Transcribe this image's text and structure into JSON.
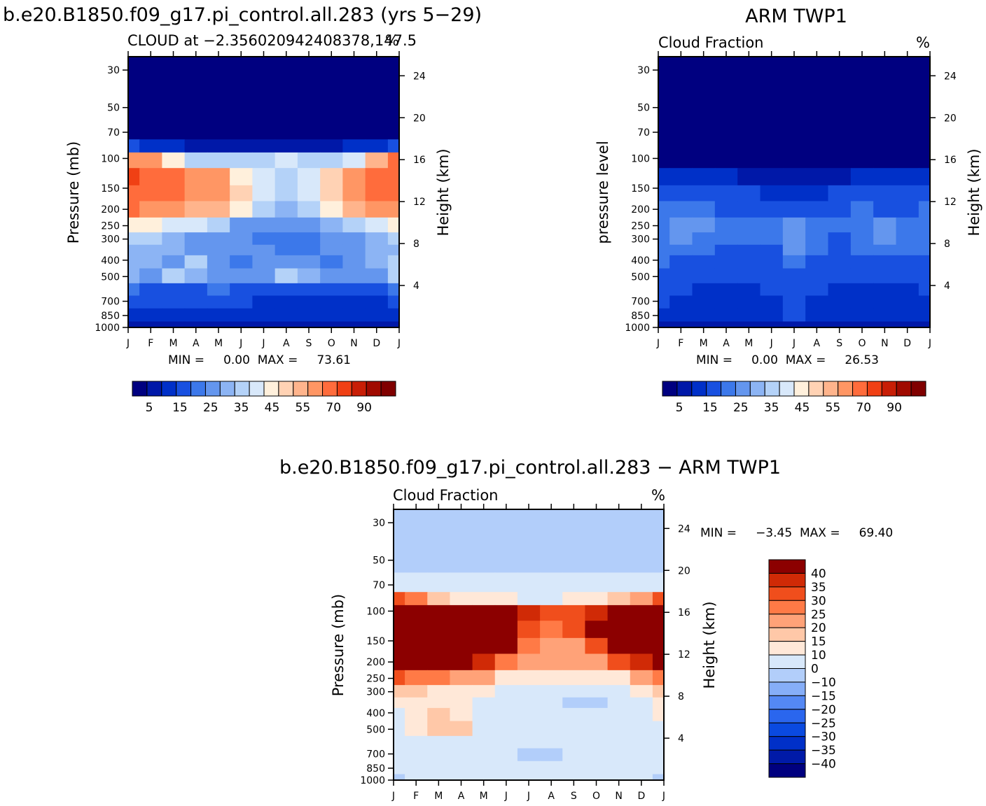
{
  "titles": {
    "model": "b.e20.B1850.f09_g17.pi_control.all.283 (yrs 5−29)",
    "obs": "ARM  TWP1",
    "diff": "b.e20.B1850.f09_g17.pi_control.all.283 − ARM  TWP1"
  },
  "chart_data": [
    {
      "type": "heatmap",
      "panel": "model",
      "subtitle_left": "CLOUD at −2.356020942408378,147.5",
      "subtitle_right": "%",
      "ylabel": "Pressure  (mb)",
      "ylabel_right": "Height  (km)",
      "x": [
        "J",
        "F",
        "M",
        "A",
        "M",
        "J",
        "J",
        "A",
        "S",
        "O",
        "N",
        "D",
        "J"
      ],
      "pressure_ticks": [
        30,
        50,
        70,
        100,
        150,
        200,
        250,
        300,
        400,
        500,
        700,
        850,
        1000
      ],
      "height_ticks": [
        24,
        20,
        16,
        12,
        8,
        4
      ],
      "ylim": [
        1000,
        25
      ],
      "stats_text": "MIN =     0.00  MAX =     73.61",
      "min": 0.0,
      "max": 73.61,
      "colorbar": {
        "orientation": "horizontal",
        "labels": [
          "5",
          "15",
          "25",
          "35",
          "45",
          "55",
          "70",
          "90"
        ]
      },
      "approx_field": {
        "pressure": [
          25,
          50,
          70,
          85,
          100,
          130,
          160,
          200,
          250,
          300,
          350,
          400,
          500,
          600,
          700,
          850,
          1000
        ],
        "months": [
          "J",
          "F",
          "M",
          "A",
          "M",
          "J",
          "J",
          "A",
          "S",
          "O",
          "N",
          "D",
          "J"
        ],
        "values": [
          [
            0,
            0,
            0,
            0,
            0,
            0,
            0,
            0,
            0,
            0,
            0,
            0,
            0
          ],
          [
            0,
            0,
            0,
            0,
            0,
            0,
            0,
            0,
            0,
            0,
            0,
            0,
            0
          ],
          [
            0,
            1,
            1,
            1,
            1,
            0,
            0,
            0,
            0,
            1,
            1,
            1,
            2
          ],
          [
            10,
            8,
            5,
            4,
            4,
            4,
            3,
            3,
            4,
            4,
            5,
            7,
            10
          ],
          [
            58,
            55,
            40,
            33,
            32,
            30,
            34,
            38,
            34,
            30,
            36,
            50,
            62
          ],
          [
            70,
            66,
            62,
            58,
            55,
            42,
            35,
            32,
            35,
            46,
            55,
            62,
            68
          ],
          [
            66,
            62,
            60,
            58,
            58,
            45,
            36,
            30,
            36,
            46,
            55,
            60,
            64
          ],
          [
            60,
            58,
            56,
            54,
            52,
            40,
            30,
            26,
            30,
            40,
            50,
            55,
            58
          ],
          [
            44,
            40,
            38,
            35,
            30,
            24,
            22,
            22,
            22,
            26,
            32,
            38,
            44
          ],
          [
            30,
            30,
            28,
            24,
            24,
            20,
            18,
            16,
            18,
            20,
            22,
            26,
            30
          ],
          [
            26,
            28,
            25,
            22,
            22,
            20,
            20,
            18,
            18,
            20,
            24,
            26,
            28
          ],
          [
            28,
            28,
            24,
            30,
            24,
            18,
            22,
            24,
            22,
            18,
            24,
            28,
            30
          ],
          [
            26,
            24,
            32,
            26,
            24,
            20,
            24,
            30,
            26,
            22,
            24,
            24,
            30
          ],
          [
            15,
            14,
            14,
            14,
            15,
            12,
            14,
            13,
            12,
            12,
            14,
            14,
            15
          ],
          [
            10,
            10,
            10,
            10,
            10,
            10,
            7,
            9,
            9,
            6,
            6,
            8,
            10
          ],
          [
            9,
            9,
            9,
            9,
            9,
            9,
            9,
            9,
            7,
            6,
            6,
            8,
            9
          ],
          [
            4,
            4,
            4,
            4,
            4,
            4,
            4,
            4,
            4,
            4,
            4,
            4,
            4
          ]
        ]
      }
    },
    {
      "type": "heatmap",
      "panel": "obs",
      "subtitle_left": "Cloud Fraction",
      "subtitle_right": "%",
      "ylabel": "pressure  level",
      "ylabel_right": "Height  (km)",
      "x": [
        "J",
        "F",
        "M",
        "A",
        "M",
        "J",
        "J",
        "A",
        "S",
        "O",
        "N",
        "D",
        "J"
      ],
      "pressure_ticks": [
        30,
        50,
        70,
        100,
        150,
        200,
        250,
        300,
        400,
        500,
        700,
        850,
        1000
      ],
      "height_ticks": [
        24,
        20,
        16,
        12,
        8,
        4
      ],
      "ylim": [
        1000,
        25
      ],
      "stats_text": "MIN =     0.00  MAX =     26.53",
      "min": 0.0,
      "max": 26.53,
      "colorbar": {
        "orientation": "horizontal",
        "labels": [
          "5",
          "15",
          "25",
          "35",
          "45",
          "55",
          "70",
          "90"
        ]
      },
      "approx_field": {
        "pressure": [
          25,
          50,
          70,
          85,
          100,
          130,
          160,
          200,
          250,
          300,
          350,
          400,
          500,
          600,
          700,
          850,
          1000
        ],
        "months": [
          "J",
          "F",
          "M",
          "A",
          "M",
          "J",
          "J",
          "A",
          "S",
          "O",
          "N",
          "D",
          "J"
        ],
        "values": [
          [
            0,
            0,
            0,
            0,
            0,
            0,
            0,
            0,
            0,
            0,
            0,
            0,
            0
          ],
          [
            0,
            0,
            0,
            0,
            0,
            0,
            0,
            0,
            0,
            0,
            0,
            0,
            0
          ],
          [
            0,
            0,
            0,
            0,
            0,
            0,
            0,
            0,
            0,
            0,
            0,
            0,
            0
          ],
          [
            0,
            0,
            0,
            0,
            0,
            0,
            0,
            0,
            0,
            0,
            0,
            0,
            0
          ],
          [
            1,
            1,
            1,
            1,
            1,
            1,
            1,
            1,
            1,
            1,
            1,
            1,
            1
          ],
          [
            8,
            7,
            6,
            5,
            4,
            4,
            4,
            3,
            4,
            5,
            6,
            8,
            9
          ],
          [
            12,
            12,
            12,
            11,
            10,
            9,
            9,
            9,
            10,
            11,
            12,
            12,
            12
          ],
          [
            16,
            18,
            16,
            14,
            12,
            12,
            13,
            13,
            14,
            16,
            14,
            14,
            16
          ],
          [
            17,
            22,
            22,
            17,
            15,
            15,
            22,
            16,
            15,
            18,
            22,
            17,
            16
          ],
          [
            17,
            22,
            18,
            16,
            15,
            15,
            21,
            17,
            14,
            16,
            20,
            16,
            16
          ],
          [
            15,
            17,
            16,
            14,
            14,
            14,
            22,
            16,
            13,
            15,
            16,
            15,
            15
          ],
          [
            15,
            14,
            14,
            11,
            13,
            14,
            15,
            14,
            12,
            12,
            14,
            12,
            14
          ],
          [
            13,
            12,
            12,
            10,
            11,
            12,
            12,
            12,
            11,
            11,
            11,
            11,
            12
          ],
          [
            11,
            10,
            9,
            8,
            9,
            10,
            11,
            10,
            9,
            9,
            9,
            9,
            10
          ],
          [
            10,
            9,
            8,
            7,
            8,
            9,
            10,
            9,
            8,
            7,
            7,
            8,
            9
          ],
          [
            9,
            8,
            6,
            6,
            7,
            8,
            10,
            8,
            7,
            6,
            6,
            7,
            8
          ],
          [
            3,
            3,
            3,
            3,
            3,
            3,
            3,
            3,
            3,
            3,
            3,
            3,
            3
          ]
        ]
      }
    },
    {
      "type": "heatmap",
      "panel": "diff",
      "subtitle_left": "Cloud Fraction",
      "subtitle_right": "%",
      "ylabel": "Pressure  (mb)",
      "ylabel_right": "Height  (km)",
      "x": [
        "J",
        "F",
        "M",
        "A",
        "M",
        "J",
        "J",
        "A",
        "S",
        "O",
        "N",
        "D",
        "J"
      ],
      "pressure_ticks": [
        30,
        50,
        70,
        100,
        150,
        200,
        250,
        300,
        400,
        500,
        700,
        850,
        1000
      ],
      "height_ticks": [
        24,
        20,
        16,
        12,
        8,
        4
      ],
      "ylim": [
        1000,
        25
      ],
      "stats_text": "MIN =     −3.45  MAX =     69.40",
      "min": -3.45,
      "max": 69.4,
      "colorbar": {
        "orientation": "vertical",
        "labels": [
          "40",
          "35",
          "30",
          "25",
          "20",
          "15",
          "10",
          "0",
          "−10",
          "−15",
          "−20",
          "−25",
          "−30",
          "−35",
          "−40"
        ]
      },
      "approx_field": {
        "pressure": [
          25,
          50,
          70,
          85,
          100,
          130,
          160,
          200,
          250,
          300,
          350,
          400,
          500,
          600,
          700,
          850,
          1000
        ],
        "months": [
          "J",
          "F",
          "M",
          "A",
          "M",
          "J",
          "J",
          "A",
          "S",
          "O",
          "N",
          "D",
          "J"
        ],
        "values": [
          [
            -2,
            -2,
            -2,
            -2,
            -2,
            -2,
            -2,
            -2,
            -2,
            -2,
            -2,
            -2,
            -2
          ],
          [
            -1,
            -1,
            -1,
            -1,
            -1,
            -1,
            -1,
            -1,
            -1,
            -1,
            -1,
            -1,
            -1
          ],
          [
            1,
            1,
            1,
            1,
            1,
            1,
            1,
            1,
            1,
            1,
            1,
            1,
            1
          ],
          [
            30,
            25,
            18,
            14,
            12,
            10,
            8,
            9,
            10,
            12,
            16,
            22,
            30
          ],
          [
            55,
            52,
            48,
            45,
            42,
            40,
            35,
            30,
            32,
            38,
            45,
            52,
            58
          ],
          [
            62,
            58,
            56,
            54,
            52,
            48,
            30,
            28,
            34,
            48,
            54,
            58,
            62
          ],
          [
            55,
            50,
            48,
            46,
            45,
            40,
            26,
            24,
            24,
            32,
            44,
            50,
            55
          ],
          [
            44,
            40,
            42,
            42,
            38,
            28,
            22,
            20,
            20,
            24,
            30,
            35,
            44
          ],
          [
            30,
            26,
            26,
            24,
            20,
            14,
            12,
            10,
            10,
            12,
            14,
            20,
            26
          ],
          [
            18,
            16,
            14,
            12,
            10,
            8,
            6,
            6,
            6,
            6,
            8,
            12,
            18
          ],
          [
            10,
            14,
            12,
            10,
            8,
            6,
            2,
            2,
            -1,
            -1,
            4,
            6,
            10
          ],
          [
            8,
            14,
            18,
            10,
            8,
            6,
            4,
            5,
            5,
            5,
            5,
            8,
            10
          ],
          [
            6,
            12,
            18,
            18,
            8,
            6,
            4,
            4,
            4,
            4,
            4,
            4,
            8
          ],
          [
            4,
            4,
            6,
            6,
            4,
            4,
            2,
            2,
            2,
            2,
            2,
            2,
            4
          ],
          [
            3,
            3,
            3,
            3,
            3,
            3,
            -1,
            -1,
            2,
            2,
            3,
            2,
            3
          ],
          [
            3,
            3,
            3,
            3,
            3,
            3,
            3,
            3,
            3,
            3,
            3,
            2,
            3
          ],
          [
            -1,
            2,
            2,
            2,
            2,
            2,
            2,
            2,
            2,
            2,
            2,
            2,
            -1
          ]
        ]
      }
    }
  ],
  "palettes": {
    "abs": [
      "#000080",
      "#0018a8",
      "#0030c8",
      "#1850e0",
      "#3c78ea",
      "#6496ee",
      "#8cb4f4",
      "#b4d2f8",
      "#d8e8fa",
      "#fff0dc",
      "#ffd2b4",
      "#ffb48c",
      "#ff9664",
      "#ff6c3c",
      "#f04014",
      "#c81e06",
      "#a00a00",
      "#800000"
    ],
    "diff": [
      "#00007f",
      "#001aa8",
      "#0030c8",
      "#0a4ae0",
      "#2a66ee",
      "#5488f4",
      "#86aef8",
      "#b2cefa",
      "#d8e8fa",
      "#ffe8d8",
      "#ffc8a8",
      "#ffa278",
      "#ff7a46",
      "#f04e1c",
      "#d02a06",
      "#8c0000"
    ]
  }
}
